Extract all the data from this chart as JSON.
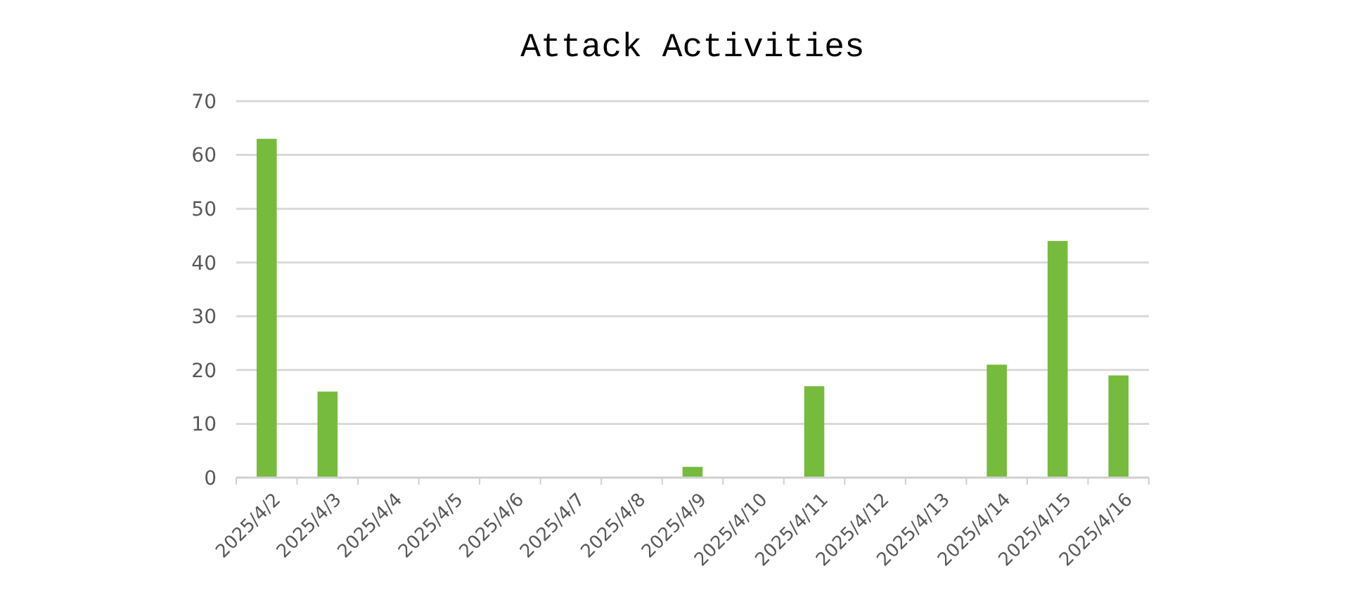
{
  "chart_data": {
    "type": "bar",
    "title": "Attack Activities",
    "categories": [
      "2025/4/2",
      "2025/4/3",
      "2025/4/4",
      "2025/4/5",
      "2025/4/6",
      "2025/4/7",
      "2025/4/8",
      "2025/4/9",
      "2025/4/10",
      "2025/4/11",
      "2025/4/12",
      "2025/4/13",
      "2025/4/14",
      "2025/4/15",
      "2025/4/16"
    ],
    "values": [
      63,
      16,
      0,
      0,
      0,
      0,
      0,
      2,
      0,
      17,
      0,
      0,
      21,
      44,
      19
    ],
    "color": "#76bb3d",
    "ylim": [
      0,
      70
    ],
    "yticks": [
      0,
      10,
      20,
      30,
      40,
      50,
      60,
      70
    ],
    "grid": "y"
  }
}
